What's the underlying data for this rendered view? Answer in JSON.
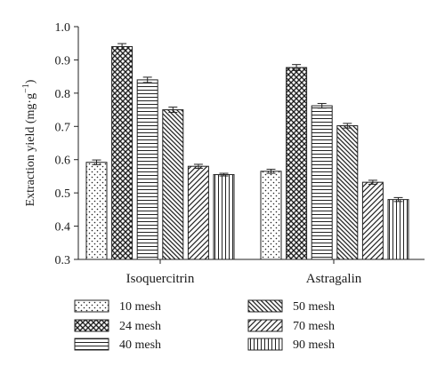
{
  "chart_data": {
    "type": "bar",
    "categories": [
      "Isoquercitrin",
      "Astragalin"
    ],
    "series": [
      {
        "name": "10 mesh",
        "values": [
          0.592,
          0.565
        ],
        "errors": [
          0.007,
          0.006
        ],
        "pattern": "dots"
      },
      {
        "name": "24 mesh",
        "values": [
          0.94,
          0.877
        ],
        "errors": [
          0.009,
          0.009
        ],
        "pattern": "crosshatch"
      },
      {
        "name": "40 mesh",
        "values": [
          0.84,
          0.762
        ],
        "errors": [
          0.008,
          0.007
        ],
        "pattern": "horizontal"
      },
      {
        "name": "50 mesh",
        "values": [
          0.75,
          0.702
        ],
        "errors": [
          0.008,
          0.007
        ],
        "pattern": "back-diagonal"
      },
      {
        "name": "70 mesh",
        "values": [
          0.58,
          0.532
        ],
        "errors": [
          0.006,
          0.006
        ],
        "pattern": "forward-diagonal"
      },
      {
        "name": "90 mesh",
        "values": [
          0.555,
          0.48
        ],
        "errors": [
          0.004,
          0.006
        ],
        "pattern": "vertical"
      }
    ],
    "ylabel": "Extraction yield (mg·g",
    "ylabel_superscript": "−1",
    "ylabel_suffix": ")",
    "ylim": [
      0.3,
      1.0
    ],
    "yticks": [
      "0.3",
      "0.4",
      "0.5",
      "0.6",
      "0.7",
      "0.8",
      "0.9",
      "1.0"
    ],
    "grid": false,
    "legend_position": "bottom",
    "bar_color": "#222222"
  }
}
